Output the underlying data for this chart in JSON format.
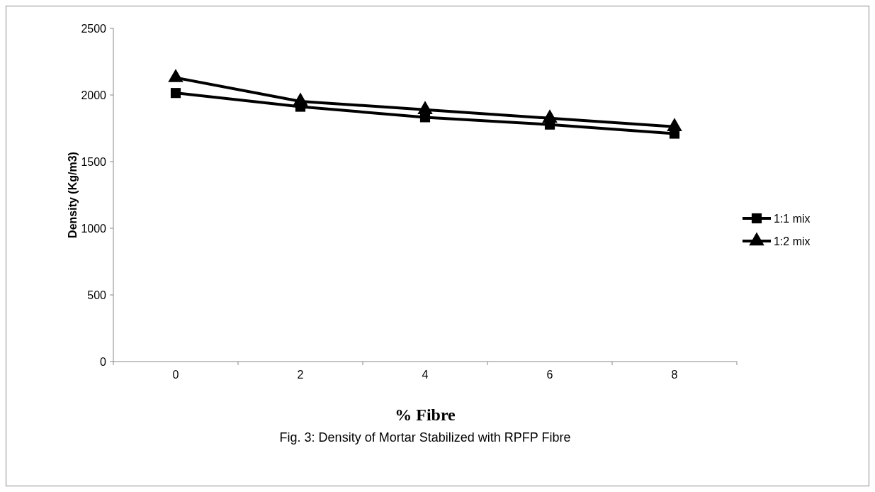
{
  "chart_data": {
    "type": "line",
    "xlabel": "% Fibre",
    "ylabel": "Density (Kg/m3)",
    "title": "Fig. 3: Density of Mortar Stabilized with RPFP Fibre",
    "categories": [
      "0",
      "2",
      "4",
      "6",
      "8"
    ],
    "ylim": [
      0,
      2500
    ],
    "yticks": [
      0,
      500,
      1000,
      1500,
      2000,
      2500
    ],
    "grid": false,
    "legend": "right",
    "line_style": "solid",
    "series": [
      {
        "name": "1:1 mix",
        "color": "#000000",
        "marker": "square",
        "values": [
          2015,
          1912,
          1833,
          1778,
          1710
        ]
      },
      {
        "name": "1:2 mix",
        "color": "#000000",
        "marker": "triangle",
        "values": [
          2130,
          1952,
          1890,
          1826,
          1762
        ]
      }
    ]
  }
}
